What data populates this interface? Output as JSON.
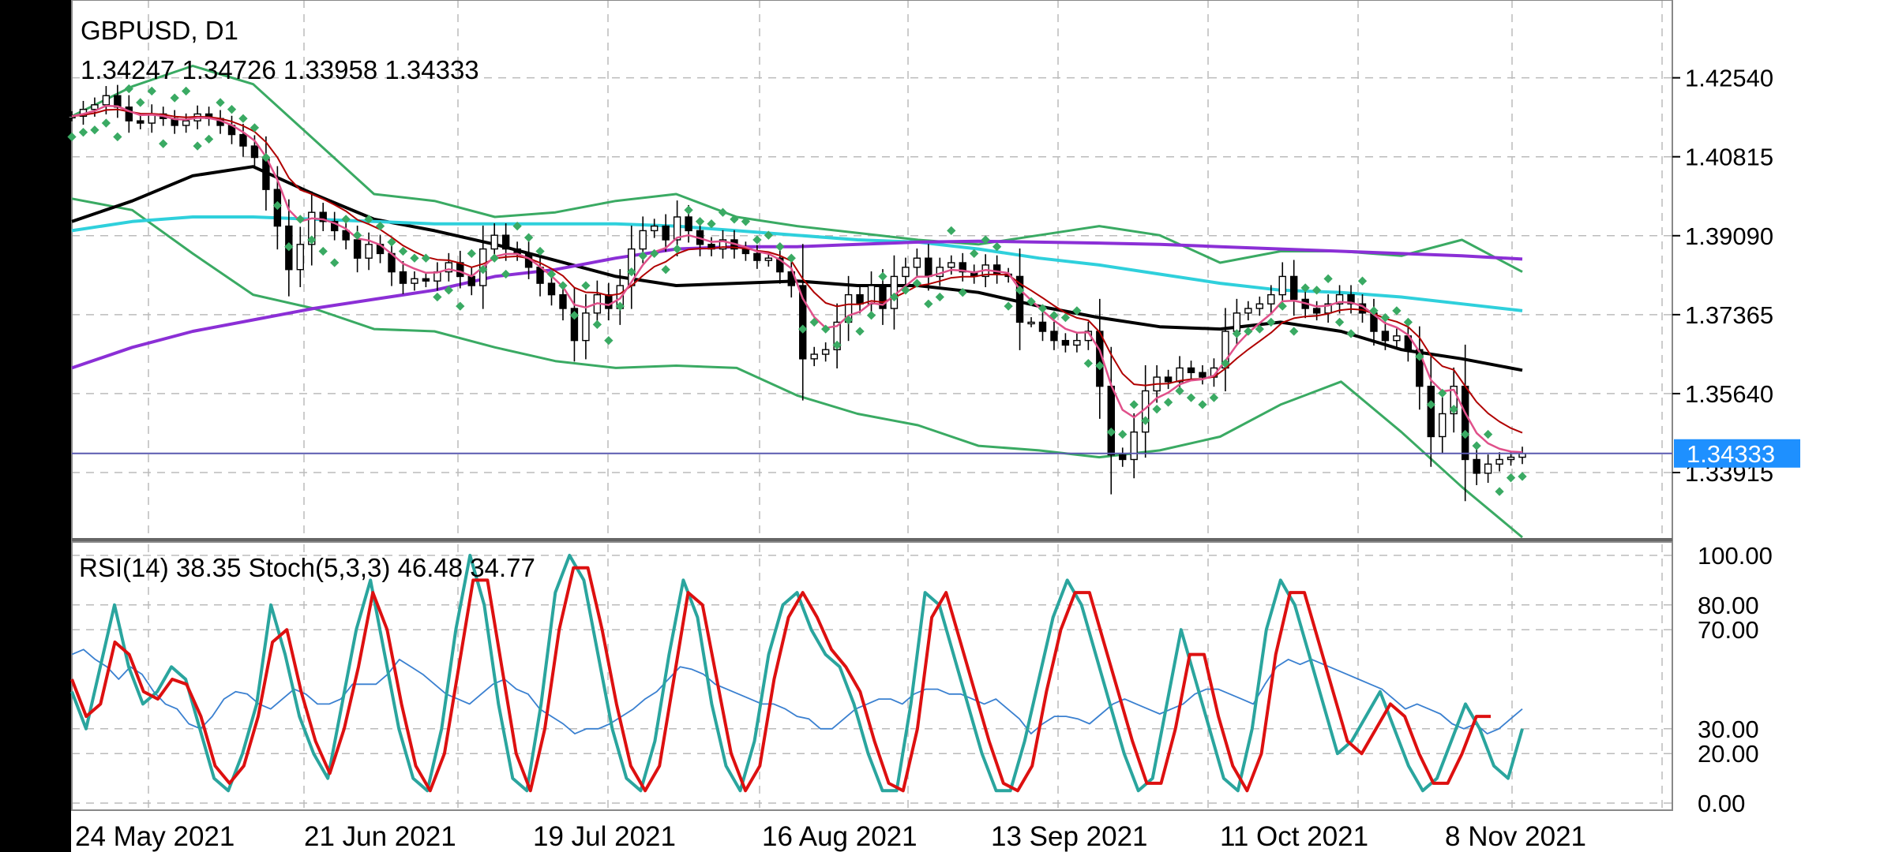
{
  "header": {
    "symbol_tf": "GBPUSD, D1",
    "ohlc": "1.34247 1.34726 1.33958 1.34333",
    "indicators": "RSI(14) 38.35 Stoch(5,3,3) 46.48 34.77"
  },
  "colors": {
    "bollinger": "#3aaa63",
    "parabolic_sar": "#3aaa63",
    "sma_black": "#000000",
    "sma_cyan": "#2fd0dc",
    "sma_purple": "#8b2fd6",
    "ema_pink": "#e0508a",
    "ema_red": "#b00000",
    "rsi": "#3a80d0",
    "stoch_main": "#2aa59e",
    "stoch_signal": "#dd1010",
    "current_line": "#5555aa",
    "current_label_bg": "#1e90ff"
  },
  "chart_data": [
    {
      "type": "candlestick",
      "title": "GBPUSD, D1",
      "x_ticks": [
        "24 May 2021",
        "21 Jun 2021",
        "19 Jul 2021",
        "16 Aug 2021",
        "13 Sep 2021",
        "11 Oct 2021",
        "8 Nov 2021"
      ],
      "y_ticks": [
        "1.42540",
        "1.40815",
        "1.39090",
        "1.37365",
        "1.35640",
        "1.33915"
      ],
      "ylim": [
        1.3245,
        1.4424
      ],
      "current_price": "1.34333",
      "ohlc_last": {
        "open": 1.34247,
        "high": 1.34726,
        "low": 1.33958,
        "close": 1.34333
      },
      "candles_close": [
        1.417,
        1.4185,
        1.4195,
        1.4215,
        1.419,
        1.416,
        1.4155,
        1.4175,
        1.4165,
        1.415,
        1.416,
        1.4175,
        1.4165,
        1.415,
        1.413,
        1.4105,
        1.408,
        1.401,
        1.393,
        1.3835,
        1.389,
        1.396,
        1.394,
        1.392,
        1.39,
        1.386,
        1.389,
        1.387,
        1.383,
        1.3805,
        1.3815,
        1.381,
        1.383,
        1.385,
        1.382,
        1.38,
        1.388,
        1.391,
        1.388,
        1.387,
        1.384,
        1.3805,
        1.378,
        1.375,
        1.368,
        1.374,
        1.378,
        1.375,
        1.38,
        1.388,
        1.392,
        1.393,
        1.39,
        1.395,
        1.392,
        1.389,
        1.388,
        1.39,
        1.388,
        1.387,
        1.3855,
        1.386,
        1.383,
        1.38,
        1.364,
        1.365,
        1.366,
        1.372,
        1.378,
        1.376,
        1.38,
        1.375,
        1.382,
        1.384,
        1.386,
        1.382,
        1.384,
        1.385,
        1.383,
        1.382,
        1.3845,
        1.3825,
        1.382,
        1.372,
        1.372,
        1.37,
        1.368,
        1.367,
        1.368,
        1.37,
        1.358,
        1.343,
        1.342,
        1.348,
        1.357,
        1.36,
        1.359,
        1.362,
        1.361,
        1.36,
        1.362,
        1.37,
        1.374,
        1.375,
        1.376,
        1.378,
        1.382,
        1.377,
        1.375,
        1.374,
        1.376,
        1.378,
        1.376,
        1.374,
        1.37,
        1.368,
        1.369,
        1.366,
        1.358,
        1.347,
        1.352,
        1.358,
        1.342,
        1.339,
        1.341,
        1.342,
        1.3425,
        1.3433
      ],
      "series": [
        {
          "name": "SMA black",
          "values": [
            1.394,
            1.3985,
            1.404,
            1.406,
            1.4,
            1.3945,
            1.392,
            1.389,
            1.3855,
            1.382,
            1.38,
            1.3805,
            1.381,
            1.38,
            1.38,
            1.3785,
            1.3755,
            1.373,
            1.371,
            1.3705,
            1.372,
            1.37,
            1.366,
            1.364,
            1.3615
          ]
        },
        {
          "name": "SMA cyan",
          "values": [
            1.392,
            1.394,
            1.395,
            1.395,
            1.3945,
            1.394,
            1.3935,
            1.3935,
            1.3935,
            1.3935,
            1.393,
            1.392,
            1.391,
            1.39,
            1.3895,
            1.388,
            1.386,
            1.3845,
            1.3825,
            1.3805,
            1.379,
            1.3785,
            1.3775,
            1.376,
            1.3745
          ]
        },
        {
          "name": "SMA purple",
          "values": [
            1.362,
            1.3665,
            1.37,
            1.3725,
            1.375,
            1.377,
            1.379,
            1.382,
            1.3835,
            1.386,
            1.388,
            1.3885,
            1.3885,
            1.389,
            1.3895,
            1.3897,
            1.3895,
            1.3893,
            1.389,
            1.3885,
            1.388,
            1.3875,
            1.387,
            1.3865,
            1.3858
          ]
        },
        {
          "name": "Bollinger upper",
          "values": [
            1.417,
            1.4235,
            1.428,
            1.424,
            1.412,
            1.4,
            1.3985,
            1.395,
            1.396,
            1.3985,
            1.4,
            1.395,
            1.393,
            1.3915,
            1.39,
            1.389,
            1.391,
            1.393,
            1.391,
            1.385,
            1.3875,
            1.3875,
            1.3865,
            1.39,
            1.383
          ]
        },
        {
          "name": "Bollinger lower",
          "values": [
            1.399,
            1.3965,
            1.387,
            1.378,
            1.375,
            1.3705,
            1.37,
            1.3665,
            1.3635,
            1.362,
            1.3625,
            1.362,
            1.356,
            1.352,
            1.3495,
            1.345,
            1.344,
            1.3425,
            1.344,
            1.347,
            1.354,
            1.359,
            1.348,
            1.336,
            1.325
          ]
        }
      ]
    },
    {
      "type": "line",
      "title": "RSI(14) 38.35 Stoch(5,3,3) 46.48 34.77",
      "y_ticks": [
        "100.00",
        "80.00",
        "70.00",
        "30.00",
        "20.00",
        "0.00"
      ],
      "ylim": [
        0,
        100
      ],
      "series": [
        {
          "name": "RSI(14)",
          "values": [
            60,
            62,
            58,
            55,
            50,
            55,
            52,
            45,
            40,
            38,
            32,
            30,
            35,
            42,
            45,
            44,
            40,
            38,
            42,
            46,
            44,
            40,
            40,
            42,
            48,
            48,
            48,
            52,
            58,
            55,
            52,
            48,
            44,
            42,
            40,
            44,
            48,
            50,
            46,
            44,
            38,
            35,
            32,
            28,
            30,
            30,
            32,
            35,
            38,
            42,
            45,
            50,
            55,
            54,
            52,
            48,
            46,
            44,
            42,
            40,
            40,
            38,
            35,
            34,
            30,
            30,
            34,
            38,
            40,
            42,
            42,
            40,
            44,
            46,
            46,
            44,
            44,
            42,
            40,
            42,
            38,
            34,
            28,
            32,
            35,
            35,
            34,
            32,
            36,
            40,
            42,
            40,
            38,
            36,
            38,
            40,
            44,
            46,
            46,
            44,
            42,
            40,
            48,
            55,
            58,
            56,
            58,
            56,
            54,
            52,
            50,
            48,
            46,
            42,
            38,
            40,
            38,
            36,
            32,
            30,
            32,
            28,
            30,
            34,
            38
          ]
        },
        {
          "name": "Stoch main",
          "values": [
            45,
            30,
            55,
            80,
            55,
            40,
            45,
            55,
            50,
            30,
            10,
            5,
            20,
            40,
            80,
            60,
            35,
            20,
            10,
            40,
            70,
            90,
            60,
            30,
            10,
            5,
            30,
            70,
            100,
            80,
            40,
            10,
            5,
            40,
            85,
            100,
            90,
            60,
            30,
            10,
            5,
            25,
            60,
            90,
            75,
            40,
            15,
            5,
            25,
            60,
            80,
            85,
            70,
            60,
            55,
            40,
            20,
            5,
            5,
            40,
            85,
            80,
            60,
            40,
            20,
            5,
            5,
            25,
            50,
            75,
            90,
            80,
            60,
            40,
            20,
            5,
            10,
            40,
            70,
            50,
            30,
            10,
            5,
            30,
            70,
            90,
            80,
            60,
            40,
            20,
            25,
            35,
            45,
            30,
            15,
            5,
            10,
            25,
            40,
            30,
            15,
            10,
            30
          ]
        },
        {
          "name": "Stoch signal",
          "values": [
            50,
            35,
            40,
            65,
            60,
            45,
            42,
            50,
            48,
            35,
            15,
            8,
            15,
            35,
            65,
            70,
            45,
            25,
            12,
            30,
            55,
            85,
            70,
            40,
            15,
            5,
            20,
            55,
            90,
            90,
            55,
            20,
            5,
            30,
            70,
            95,
            95,
            70,
            40,
            15,
            5,
            15,
            50,
            85,
            80,
            50,
            20,
            5,
            15,
            50,
            75,
            85,
            75,
            62,
            55,
            45,
            25,
            8,
            5,
            30,
            75,
            85,
            65,
            45,
            25,
            8,
            5,
            15,
            45,
            70,
            85,
            85,
            65,
            45,
            25,
            8,
            8,
            30,
            60,
            60,
            35,
            15,
            5,
            20,
            60,
            85,
            85,
            65,
            45,
            25,
            20,
            30,
            40,
            35,
            20,
            8,
            8,
            20,
            35,
            35
          ]
        }
      ]
    }
  ]
}
